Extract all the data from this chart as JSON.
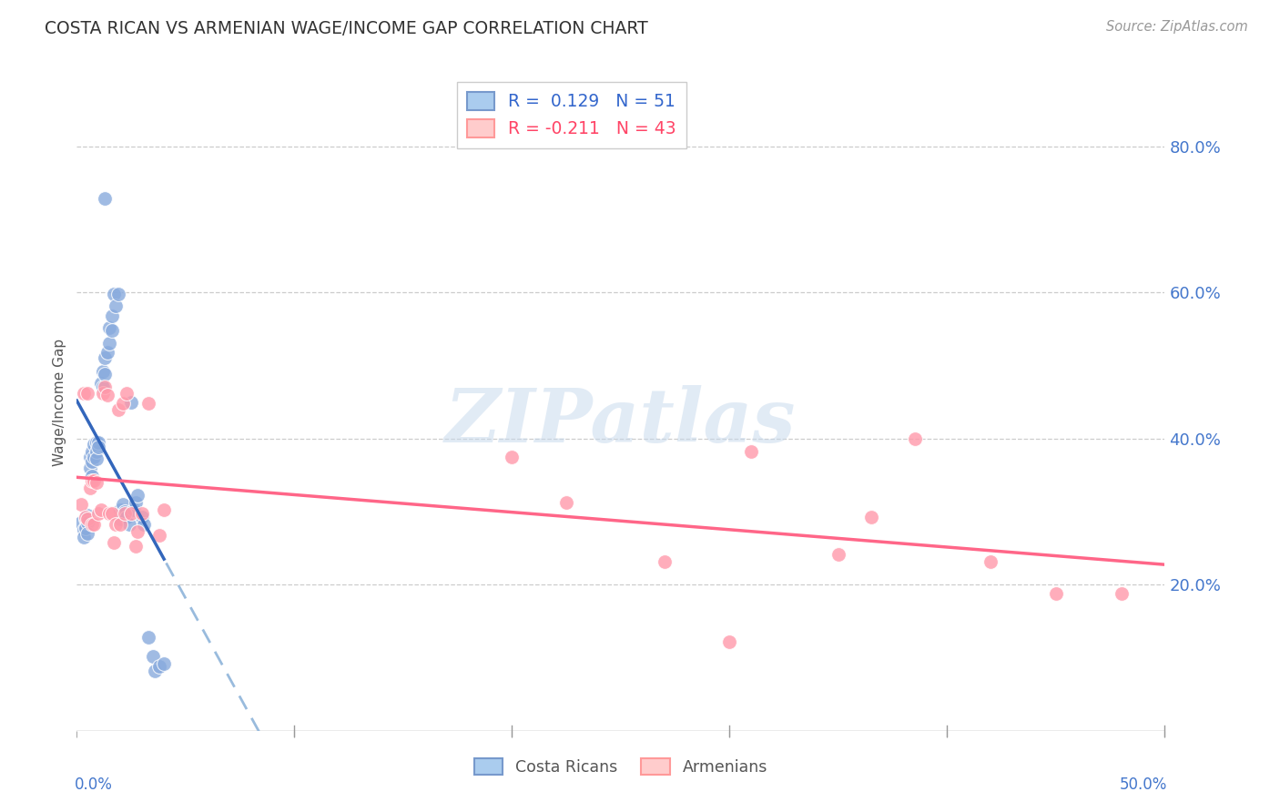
{
  "title": "COSTA RICAN VS ARMENIAN WAGE/INCOME GAP CORRELATION CHART",
  "source": "Source: ZipAtlas.com",
  "ylabel": "Wage/Income Gap",
  "right_ytick_labels": [
    "20.0%",
    "40.0%",
    "60.0%",
    "80.0%"
  ],
  "right_ytick_values": [
    0.2,
    0.4,
    0.6,
    0.8
  ],
  "xmin": 0.0,
  "xmax": 0.5,
  "ymin": 0.0,
  "ymax": 0.9,
  "legend_blue_label": "R =  0.129   N = 51",
  "legend_pink_label": "R = -0.211   N = 43",
  "legend_costa_rica": "Costa Ricans",
  "legend_armenians": "Armenians",
  "blue_color": "#88AADD",
  "pink_color": "#FF99AA",
  "watermark": "ZIPatlas",
  "grid_color": "#CCCCCC",
  "background_color": "#FFFFFF",
  "blue_line_color": "#3366BB",
  "blue_dash_color": "#99BBDD",
  "pink_line_color": "#FF6688",
  "blue_x": [
    0.002,
    0.003,
    0.003,
    0.004,
    0.004,
    0.005,
    0.005,
    0.005,
    0.006,
    0.006,
    0.007,
    0.007,
    0.007,
    0.008,
    0.008,
    0.009,
    0.009,
    0.009,
    0.01,
    0.01,
    0.011,
    0.012,
    0.012,
    0.013,
    0.013,
    0.014,
    0.015,
    0.015,
    0.016,
    0.016,
    0.017,
    0.018,
    0.019,
    0.02,
    0.02,
    0.021,
    0.022,
    0.023,
    0.024,
    0.025,
    0.026,
    0.027,
    0.028,
    0.03,
    0.031,
    0.033,
    0.035,
    0.036,
    0.038,
    0.04,
    0.013
  ],
  "blue_y": [
    0.285,
    0.275,
    0.265,
    0.29,
    0.278,
    0.295,
    0.285,
    0.27,
    0.375,
    0.36,
    0.382,
    0.368,
    0.348,
    0.392,
    0.375,
    0.395,
    0.382,
    0.372,
    0.395,
    0.388,
    0.475,
    0.492,
    0.47,
    0.51,
    0.488,
    0.518,
    0.552,
    0.53,
    0.568,
    0.548,
    0.598,
    0.582,
    0.598,
    0.302,
    0.29,
    0.31,
    0.3,
    0.292,
    0.282,
    0.45,
    0.302,
    0.312,
    0.322,
    0.292,
    0.282,
    0.128,
    0.102,
    0.082,
    0.088,
    0.092,
    0.728
  ],
  "pink_x": [
    0.002,
    0.003,
    0.004,
    0.005,
    0.005,
    0.006,
    0.007,
    0.007,
    0.008,
    0.008,
    0.009,
    0.01,
    0.011,
    0.012,
    0.013,
    0.014,
    0.015,
    0.016,
    0.017,
    0.018,
    0.019,
    0.02,
    0.021,
    0.022,
    0.023,
    0.025,
    0.027,
    0.028,
    0.03,
    0.033,
    0.038,
    0.04,
    0.2,
    0.225,
    0.27,
    0.3,
    0.31,
    0.35,
    0.365,
    0.385,
    0.42,
    0.45,
    0.48
  ],
  "pink_y": [
    0.31,
    0.462,
    0.292,
    0.462,
    0.29,
    0.332,
    0.342,
    0.282,
    0.342,
    0.282,
    0.34,
    0.298,
    0.302,
    0.462,
    0.47,
    0.46,
    0.298,
    0.298,
    0.258,
    0.282,
    0.44,
    0.282,
    0.448,
    0.298,
    0.462,
    0.298,
    0.252,
    0.272,
    0.298,
    0.448,
    0.268,
    0.302,
    0.375,
    0.312,
    0.232,
    0.122,
    0.382,
    0.242,
    0.292,
    0.4,
    0.232,
    0.188,
    0.188
  ]
}
